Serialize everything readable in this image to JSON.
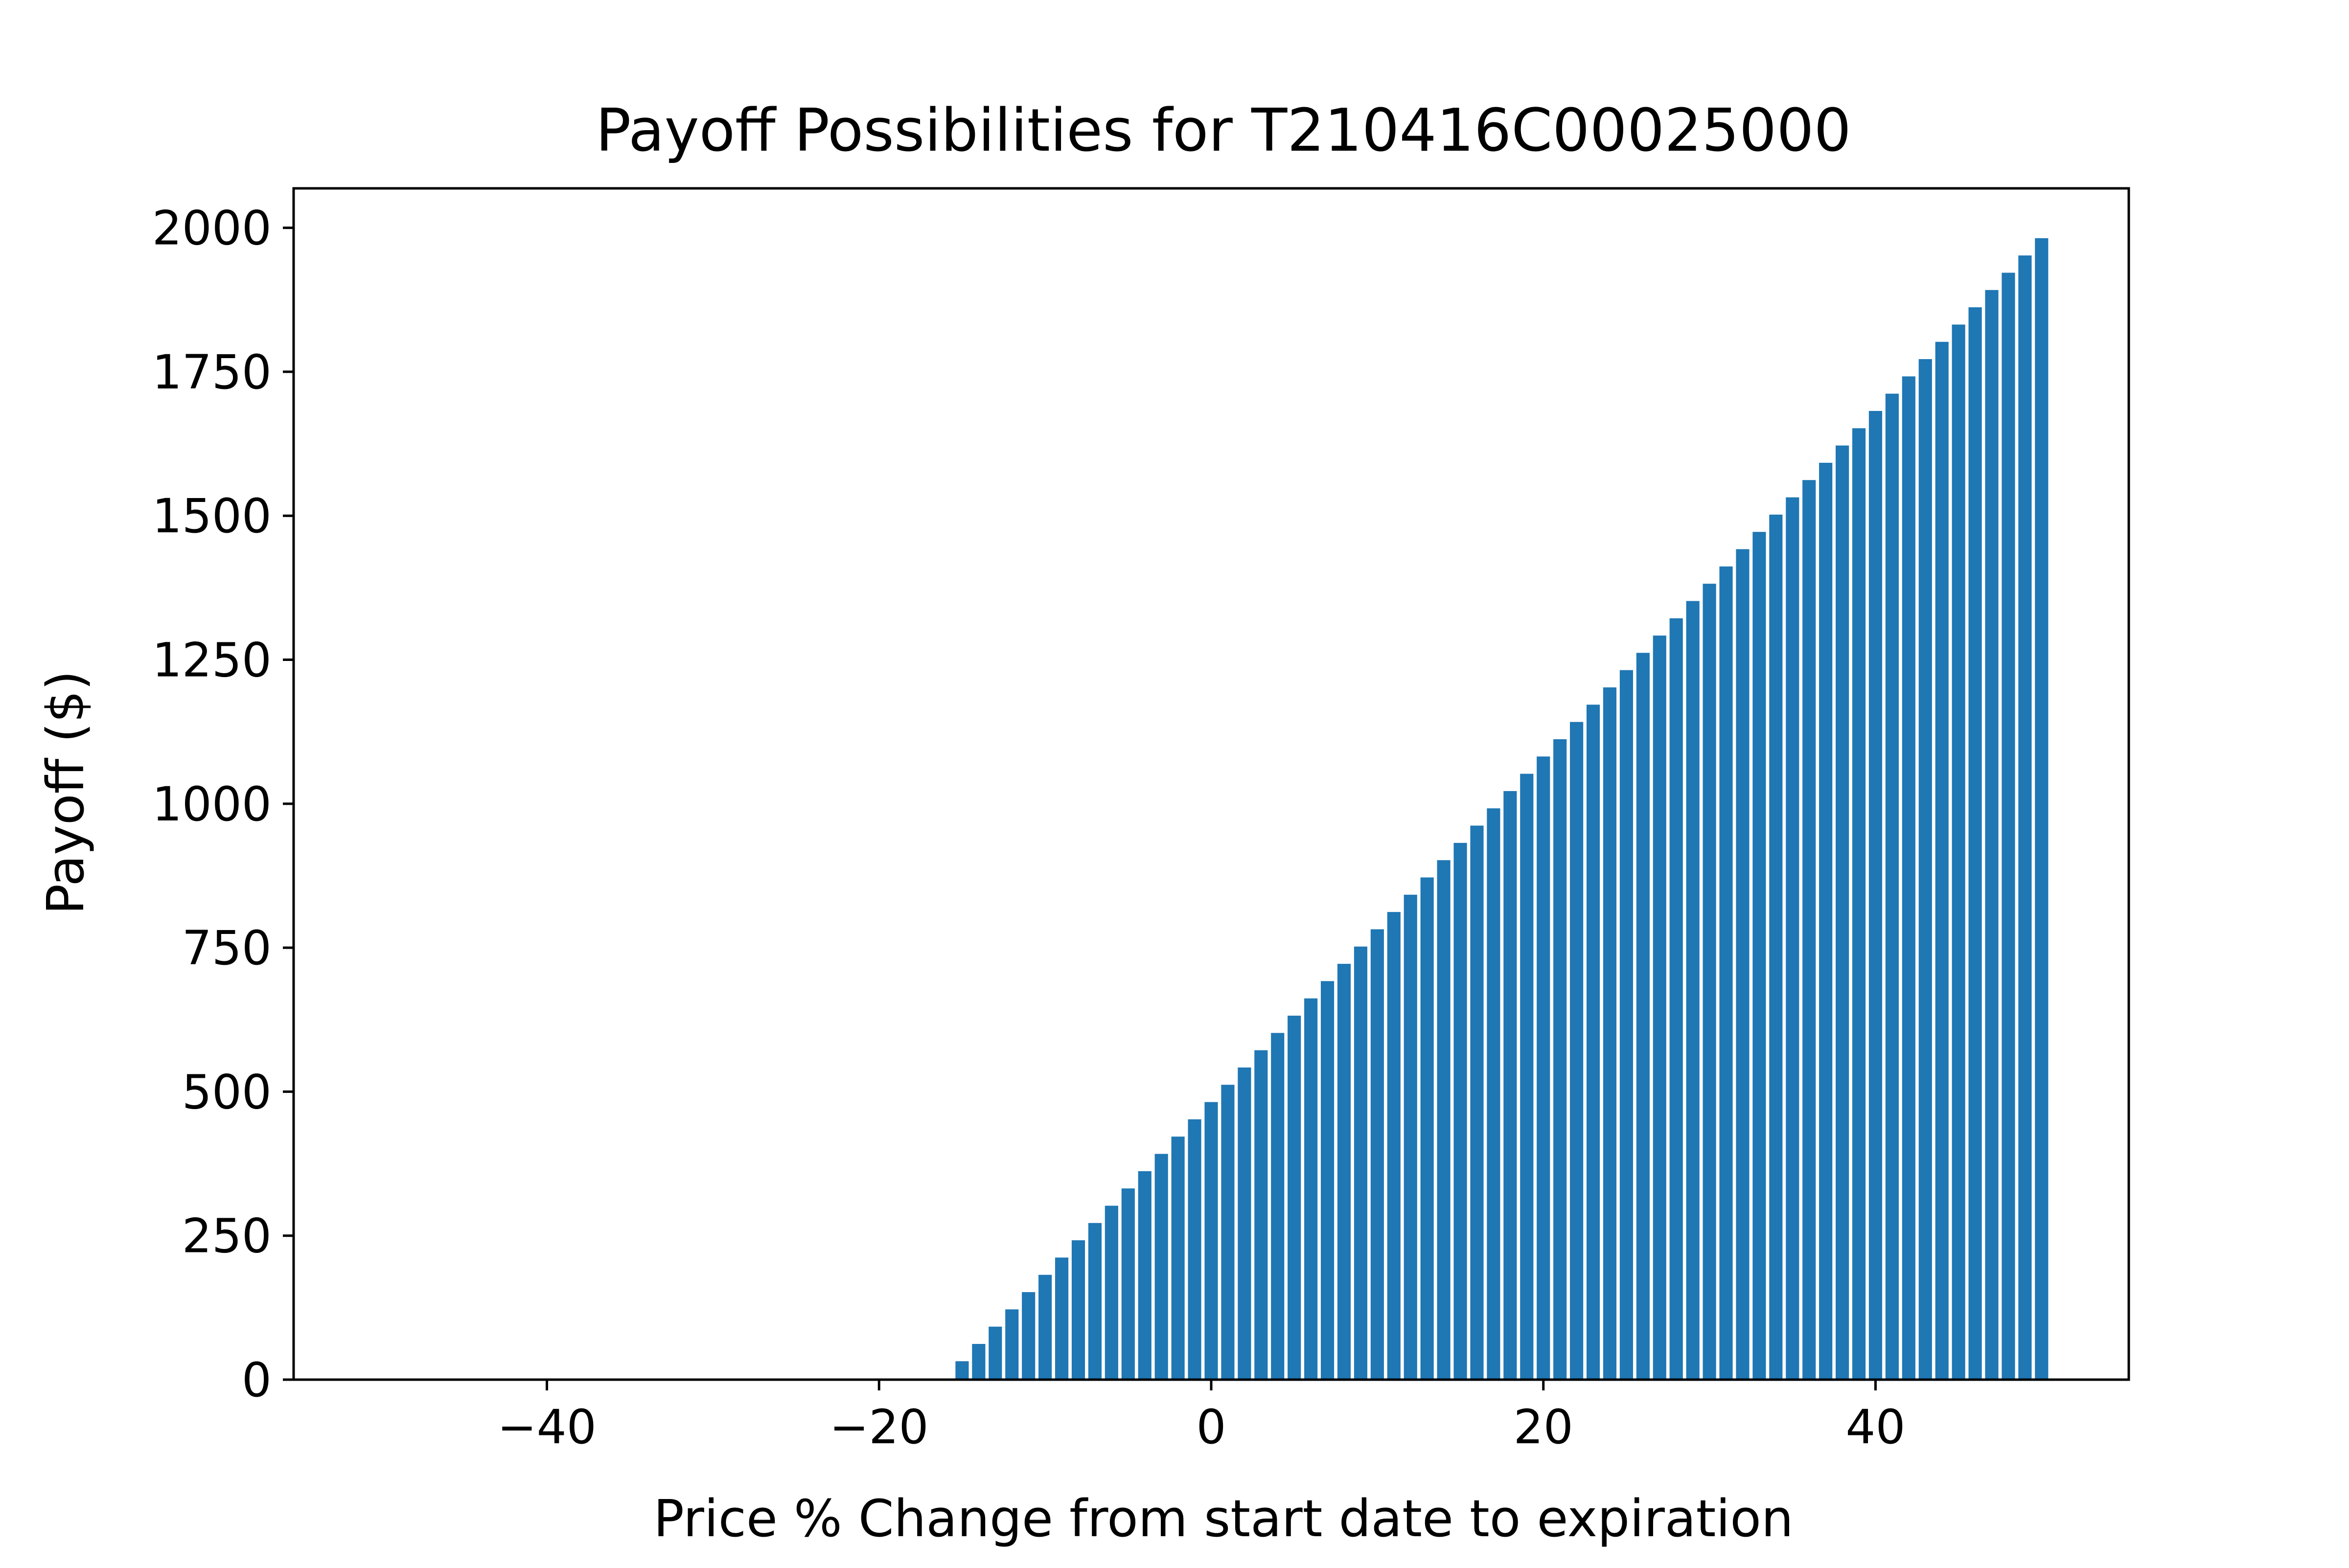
{
  "chart_data": {
    "type": "bar",
    "title": "Payoff Possibilities for T210416C00025000",
    "xlabel": "Price % Change from start date to expiration",
    "ylabel": "Payoff ($)",
    "xlim": [
      -55.25,
      55.25
    ],
    "ylim": [
      0,
      2068.5
    ],
    "x_ticks": [
      -40,
      -20,
      0,
      20,
      40
    ],
    "x_tick_labels": [
      "−40",
      "−20",
      "0",
      "20",
      "40"
    ],
    "y_ticks": [
      0,
      250,
      500,
      750,
      1000,
      1250,
      1500,
      1750,
      2000
    ],
    "y_tick_labels": [
      "0",
      "250",
      "500",
      "750",
      "1000",
      "1250",
      "1500",
      "1750",
      "2000"
    ],
    "grid": false,
    "legend": "none",
    "bar_color": "#1f77b4",
    "series": [
      {
        "x": [
          -50,
          -49,
          -48,
          -47,
          -46,
          -45,
          -44,
          -43,
          -42,
          -41,
          -40,
          -39,
          -38,
          -37,
          -36,
          -35,
          -34,
          -33,
          -32,
          -31,
          -30,
          -29,
          -28,
          -27,
          -26,
          -25,
          -24,
          -23,
          -22,
          -21,
          -20,
          -19,
          -18,
          -17,
          -16,
          -15,
          -14,
          -13,
          -12,
          -11,
          -10,
          -9,
          -8,
          -7,
          -6,
          -5,
          -4,
          -3,
          -2,
          -1,
          0,
          1,
          2,
          3,
          4,
          5,
          6,
          7,
          8,
          9,
          10,
          11,
          12,
          13,
          14,
          15,
          16,
          17,
          18,
          19,
          20,
          21,
          22,
          23,
          24,
          25,
          26,
          27,
          28,
          29,
          30,
          31,
          32,
          33,
          34,
          35,
          36,
          37,
          38,
          39,
          40,
          41,
          42,
          43,
          44,
          45,
          46,
          47,
          48,
          49,
          50
        ],
        "values": [
          0,
          0,
          0,
          0,
          0,
          0,
          0,
          0,
          0,
          0,
          0,
          0,
          0,
          0,
          0,
          0,
          0,
          0,
          0,
          0,
          0,
          0,
          0,
          0,
          0,
          0,
          0,
          0,
          0,
          0,
          0,
          0,
          0,
          0,
          0,
          32,
          62,
          92,
          122,
          152,
          182,
          212,
          242,
          272,
          302,
          332,
          362,
          392,
          422,
          452,
          482,
          512,
          542,
          572,
          602,
          632,
          662,
          692,
          722,
          752,
          782,
          812,
          842,
          872,
          902,
          932,
          962,
          992,
          1022,
          1052,
          1082,
          1112,
          1142,
          1172,
          1202,
          1232,
          1262,
          1292,
          1322,
          1352,
          1382,
          1412,
          1442,
          1472,
          1502,
          1532,
          1562,
          1592,
          1622,
          1652,
          1682,
          1712,
          1742,
          1772,
          1802,
          1832,
          1862,
          1892,
          1922,
          1952,
          1982
        ]
      }
    ]
  }
}
